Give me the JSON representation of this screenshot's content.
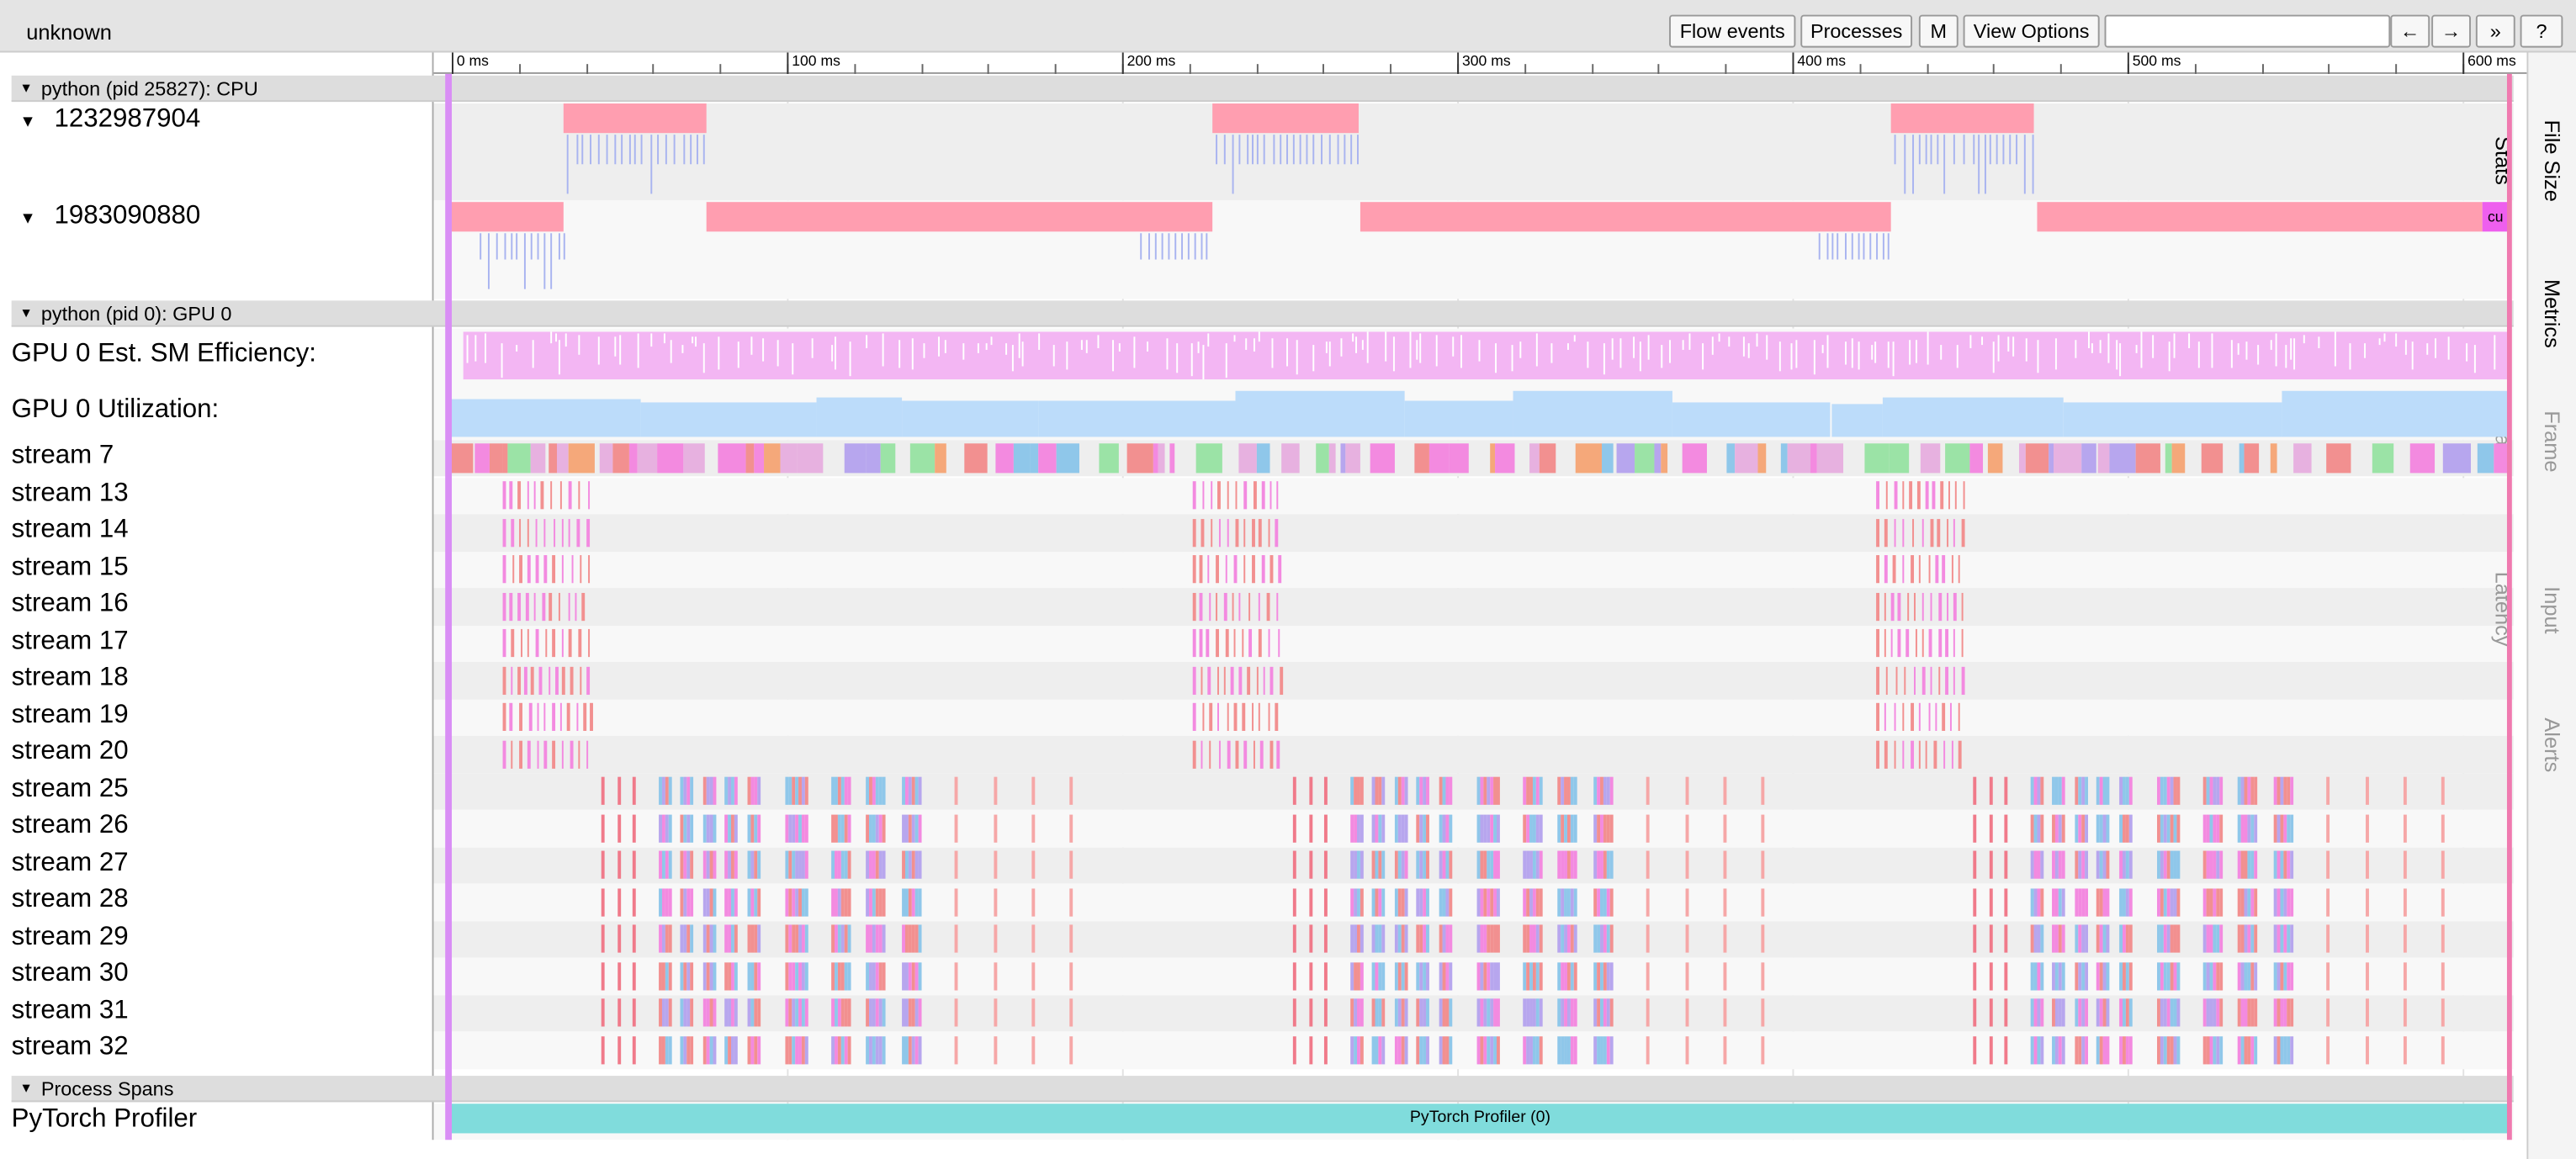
{
  "toolbar": {
    "title": "unknown",
    "buttons": [
      "Flow events",
      "Processes",
      "M",
      "View Options"
    ],
    "nav": [
      "←",
      "→",
      "»",
      "?"
    ]
  },
  "ruler": [
    "0 ms",
    "100 ms",
    "200 ms",
    "300 ms",
    "400 ms",
    "500 ms",
    "600 ms"
  ],
  "processes": [
    {
      "header": "python (pid 25827): CPU",
      "tracks": [
        "1232987904",
        "1983090880"
      ]
    },
    {
      "header": "python (pid 0): GPU 0",
      "tracks": [
        "GPU 0 Est. SM Efficiency:",
        "GPU 0 Utilization:",
        "stream 7",
        "stream 13",
        "stream 14",
        "stream 15",
        "stream 16",
        "stream 17",
        "stream 18",
        "stream 19",
        "stream 20",
        "stream 25",
        "stream 26",
        "stream 27",
        "stream 28",
        "stream 29",
        "stream 30",
        "stream 31",
        "stream 32"
      ]
    },
    {
      "header": "Process Spans",
      "tracks": [
        "PyTorch Profiler"
      ]
    }
  ],
  "slice_label": "cu",
  "span_label": "PyTorch Profiler (0)",
  "side_tabs": [
    "File Size Stats",
    "Metrics",
    "Frame Data",
    "Input Latency",
    "Alerts"
  ]
}
